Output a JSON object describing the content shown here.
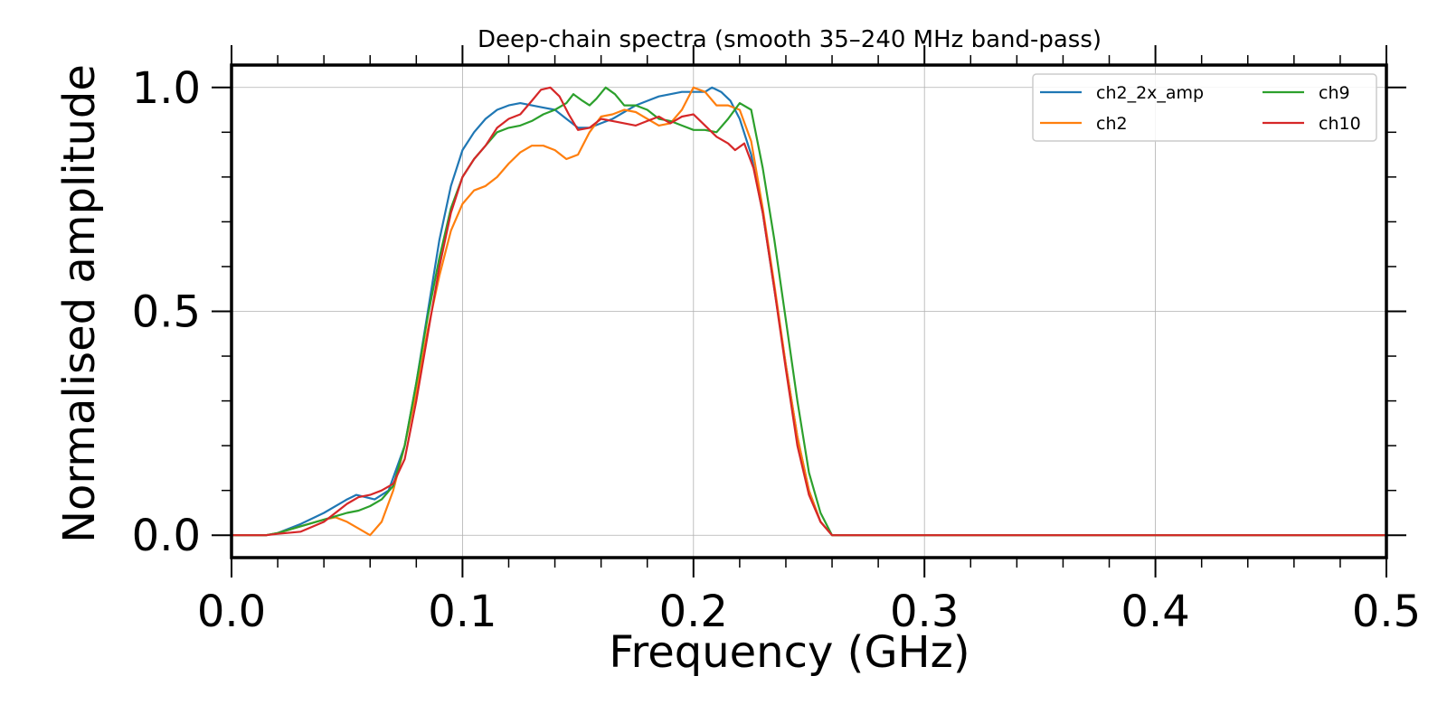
{
  "chart_data": {
    "type": "line",
    "title": "Deep-chain spectra (smooth 35–240 MHz band-pass)",
    "xlabel": "Frequency (GHz)",
    "ylabel": "Normalised amplitude",
    "xlim": [
      0.0,
      0.5
    ],
    "ylim": [
      -0.05,
      1.05
    ],
    "xticks": [
      0.0,
      0.1,
      0.2,
      0.3,
      0.4,
      0.5
    ],
    "xtick_labels": [
      "0.0",
      "0.1",
      "0.2",
      "0.3",
      "0.4",
      "0.5"
    ],
    "yticks": [
      0.0,
      0.5,
      1.0
    ],
    "ytick_labels": [
      "0.0",
      "0.5",
      "1.0"
    ],
    "grid": true,
    "legend_position": "top-right",
    "legend_columns": 2,
    "series": [
      {
        "name": "ch2_2x_amp",
        "color": "#1f77b4",
        "x": [
          0.0,
          0.015,
          0.02,
          0.03,
          0.04,
          0.05,
          0.054,
          0.058,
          0.062,
          0.068,
          0.075,
          0.08,
          0.085,
          0.09,
          0.095,
          0.1,
          0.105,
          0.11,
          0.115,
          0.12,
          0.125,
          0.13,
          0.135,
          0.14,
          0.145,
          0.15,
          0.155,
          0.16,
          0.165,
          0.17,
          0.175,
          0.18,
          0.185,
          0.19,
          0.195,
          0.2,
          0.205,
          0.208,
          0.212,
          0.216,
          0.22,
          0.225,
          0.23,
          0.235,
          0.24,
          0.245,
          0.25,
          0.255,
          0.26,
          0.5
        ],
        "y": [
          0.0,
          0.0,
          0.005,
          0.025,
          0.05,
          0.08,
          0.09,
          0.085,
          0.08,
          0.1,
          0.2,
          0.34,
          0.5,
          0.66,
          0.78,
          0.86,
          0.9,
          0.93,
          0.95,
          0.96,
          0.965,
          0.96,
          0.955,
          0.95,
          0.93,
          0.91,
          0.91,
          0.92,
          0.93,
          0.945,
          0.96,
          0.97,
          0.98,
          0.985,
          0.99,
          0.99,
          0.99,
          1.0,
          0.99,
          0.97,
          0.93,
          0.85,
          0.72,
          0.55,
          0.38,
          0.22,
          0.1,
          0.03,
          0.0,
          0.0
        ]
      },
      {
        "name": "ch2",
        "color": "#ff7f0e",
        "x": [
          0.0,
          0.015,
          0.02,
          0.03,
          0.04,
          0.045,
          0.05,
          0.055,
          0.06,
          0.065,
          0.07,
          0.075,
          0.08,
          0.085,
          0.09,
          0.095,
          0.1,
          0.105,
          0.11,
          0.115,
          0.12,
          0.125,
          0.13,
          0.135,
          0.14,
          0.145,
          0.15,
          0.155,
          0.16,
          0.165,
          0.17,
          0.175,
          0.18,
          0.185,
          0.19,
          0.195,
          0.2,
          0.205,
          0.21,
          0.215,
          0.22,
          0.225,
          0.23,
          0.235,
          0.24,
          0.245,
          0.25,
          0.255,
          0.26,
          0.5
        ],
        "y": [
          0.0,
          0.0,
          0.005,
          0.02,
          0.035,
          0.04,
          0.03,
          0.015,
          0.0,
          0.03,
          0.1,
          0.2,
          0.32,
          0.46,
          0.58,
          0.68,
          0.74,
          0.77,
          0.78,
          0.8,
          0.83,
          0.855,
          0.87,
          0.87,
          0.86,
          0.84,
          0.85,
          0.9,
          0.935,
          0.94,
          0.95,
          0.945,
          0.93,
          0.915,
          0.92,
          0.95,
          1.0,
          0.99,
          0.96,
          0.96,
          0.95,
          0.88,
          0.73,
          0.56,
          0.38,
          0.22,
          0.1,
          0.03,
          0.0,
          0.0
        ]
      },
      {
        "name": "ch9",
        "color": "#2ca02c",
        "x": [
          0.0,
          0.015,
          0.02,
          0.03,
          0.04,
          0.05,
          0.055,
          0.06,
          0.065,
          0.07,
          0.075,
          0.08,
          0.085,
          0.09,
          0.095,
          0.1,
          0.105,
          0.11,
          0.115,
          0.12,
          0.125,
          0.13,
          0.135,
          0.14,
          0.145,
          0.148,
          0.152,
          0.155,
          0.158,
          0.162,
          0.166,
          0.17,
          0.175,
          0.18,
          0.185,
          0.19,
          0.195,
          0.2,
          0.205,
          0.21,
          0.215,
          0.22,
          0.225,
          0.23,
          0.235,
          0.24,
          0.245,
          0.25,
          0.255,
          0.26,
          0.5
        ],
        "y": [
          0.0,
          0.0,
          0.005,
          0.02,
          0.035,
          0.05,
          0.055,
          0.065,
          0.08,
          0.11,
          0.2,
          0.34,
          0.49,
          0.62,
          0.73,
          0.8,
          0.84,
          0.87,
          0.9,
          0.91,
          0.915,
          0.925,
          0.94,
          0.95,
          0.965,
          0.985,
          0.97,
          0.96,
          0.975,
          1.0,
          0.985,
          0.96,
          0.96,
          0.95,
          0.93,
          0.925,
          0.915,
          0.905,
          0.905,
          0.9,
          0.93,
          0.965,
          0.95,
          0.82,
          0.66,
          0.48,
          0.3,
          0.14,
          0.05,
          0.0,
          0.0
        ]
      },
      {
        "name": "ch10",
        "color": "#d62728",
        "x": [
          0.0,
          0.015,
          0.02,
          0.03,
          0.04,
          0.045,
          0.05,
          0.055,
          0.06,
          0.065,
          0.07,
          0.075,
          0.08,
          0.085,
          0.09,
          0.095,
          0.1,
          0.105,
          0.11,
          0.115,
          0.12,
          0.125,
          0.13,
          0.134,
          0.138,
          0.142,
          0.146,
          0.15,
          0.155,
          0.16,
          0.165,
          0.17,
          0.175,
          0.18,
          0.185,
          0.19,
          0.195,
          0.2,
          0.205,
          0.21,
          0.215,
          0.218,
          0.222,
          0.226,
          0.23,
          0.235,
          0.24,
          0.245,
          0.25,
          0.255,
          0.26,
          0.5
        ],
        "y": [
          0.0,
          0.0,
          0.003,
          0.008,
          0.03,
          0.05,
          0.07,
          0.085,
          0.09,
          0.1,
          0.115,
          0.17,
          0.3,
          0.45,
          0.6,
          0.72,
          0.8,
          0.84,
          0.87,
          0.91,
          0.93,
          0.94,
          0.97,
          0.995,
          1.0,
          0.98,
          0.94,
          0.905,
          0.91,
          0.93,
          0.925,
          0.92,
          0.915,
          0.925,
          0.935,
          0.92,
          0.935,
          0.94,
          0.915,
          0.89,
          0.875,
          0.86,
          0.875,
          0.82,
          0.72,
          0.55,
          0.37,
          0.2,
          0.09,
          0.03,
          0.0,
          0.0
        ]
      }
    ]
  }
}
